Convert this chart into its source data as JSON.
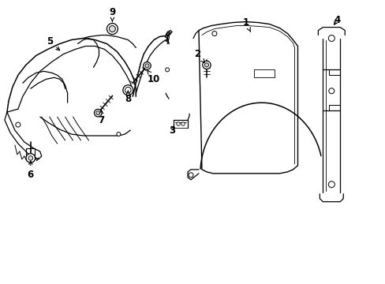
{
  "bg": "#ffffff",
  "lc": "#000000",
  "figsize": [
    4.89,
    3.6
  ],
  "dpi": 100,
  "labels": {
    "9": [
      1.42,
      3.42,
      1.42,
      3.28
    ],
    "5": [
      0.62,
      3.05,
      0.78,
      2.92
    ],
    "10": [
      1.88,
      2.62,
      1.82,
      2.72
    ],
    "8": [
      1.62,
      2.35,
      1.62,
      2.45
    ],
    "7": [
      1.28,
      2.08,
      1.28,
      2.22
    ],
    "6": [
      0.38,
      1.35,
      0.38,
      1.58
    ],
    "3": [
      2.12,
      1.95,
      2.12,
      2.08
    ],
    "2": [
      2.52,
      2.88,
      2.62,
      2.72
    ],
    "1": [
      3.05,
      3.28,
      3.18,
      3.18
    ],
    "4": [
      4.22,
      3.32,
      4.18,
      3.22
    ]
  }
}
